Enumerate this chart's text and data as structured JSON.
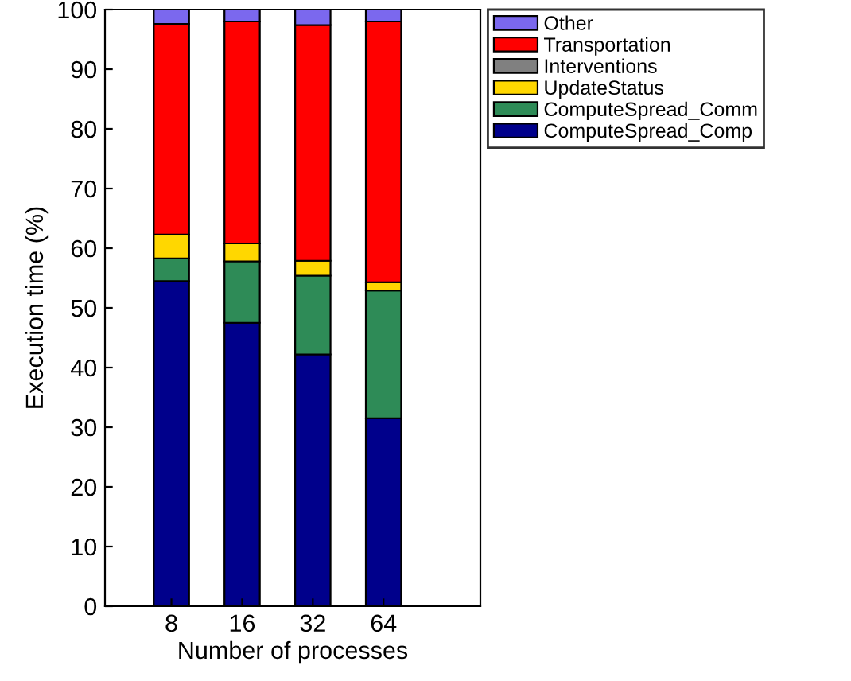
{
  "chart_data": {
    "type": "bar",
    "stacked": true,
    "xlabel": "Number of processes",
    "ylabel": "Execution time (%)",
    "categories": [
      "8",
      "16",
      "32",
      "64"
    ],
    "series": [
      {
        "name": "ComputeSpread_Comp",
        "color": "#00008b",
        "values": [
          54.5,
          47.5,
          42.2,
          31.5
        ]
      },
      {
        "name": "ComputeSpread_Comm",
        "color": "#2e8b57",
        "values": [
          3.8,
          10.3,
          13.2,
          21.4
        ]
      },
      {
        "name": "UpdateStatus",
        "color": "#ffd700",
        "values": [
          4.0,
          3.0,
          2.5,
          1.4
        ]
      },
      {
        "name": "Interventions",
        "color": "#808080",
        "values": [
          null,
          null,
          null,
          null
        ]
      },
      {
        "name": "Transportation",
        "color": "#ff0000",
        "values": [
          35.3,
          37.2,
          39.5,
          43.7
        ]
      },
      {
        "name": "Other",
        "color": "#7b68ee",
        "values": [
          2.4,
          2.0,
          2.6,
          2.0
        ]
      }
    ],
    "ylim": [
      0,
      100
    ],
    "yticks": [
      0,
      10,
      20,
      30,
      40,
      50,
      60,
      70,
      80,
      90,
      100
    ],
    "grid": false,
    "legend": "top right"
  }
}
